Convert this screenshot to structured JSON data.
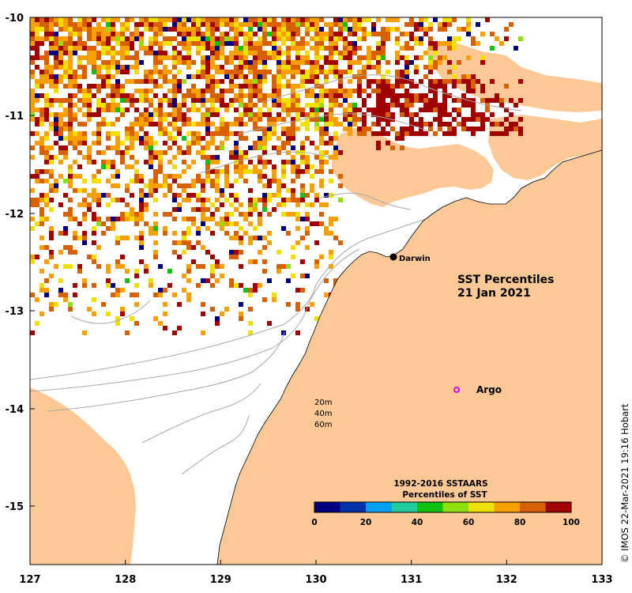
{
  "map": {
    "title_line1": "SST Percentiles",
    "title_line2": "21 Jan 2021",
    "x_ticks": [
      "127",
      "128",
      "129",
      "130",
      "131",
      "132",
      "133"
    ],
    "y_ticks": [
      "-10",
      "-11",
      "-12",
      "-13",
      "-14",
      "-15"
    ],
    "places": [
      {
        "name": "Darwin",
        "lon": 130.84,
        "lat": -12.46,
        "marker": "filled-dot"
      },
      {
        "name": "Argo",
        "marker": "magenta-circle"
      }
    ],
    "contour_labels": [
      "20m",
      "40m",
      "60m"
    ],
    "land_color": "#fbc896",
    "ocean_color": "#ffffff",
    "contour_color": "#a8a8a8"
  },
  "legend": {
    "title_line1": "1992-2016 SSTAARS",
    "title_line2": "Percentiles of SST",
    "tick_labels": [
      "0",
      "20",
      "40",
      "60",
      "80",
      "100"
    ],
    "colors": [
      "#000080",
      "#0033aa",
      "#00a0f0",
      "#20c8a0",
      "#10c010",
      "#90e010",
      "#f0e000",
      "#f8a000",
      "#d86000",
      "#a00000"
    ]
  },
  "credit": "© IMOS 22-Mar-2021 19:16 Hobart"
}
